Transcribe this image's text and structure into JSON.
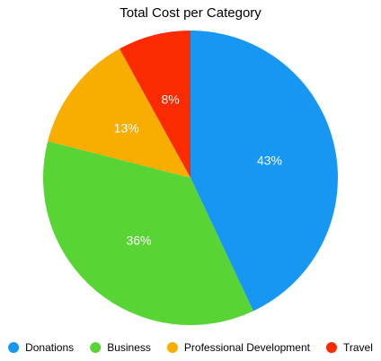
{
  "chart_data": {
    "type": "pie",
    "title": "Total Cost per Category",
    "categories": [
      "Donations",
      "Business",
      "Professional Development",
      "Travel"
    ],
    "values": [
      43,
      36,
      13,
      8
    ],
    "labels": [
      "43%",
      "36%",
      "13%",
      "8%"
    ],
    "colors": [
      "#1797f4",
      "#58d534",
      "#f7ae00",
      "#fc2a00"
    ],
    "legend_position": "bottom",
    "start_angle_deg": 0,
    "direction": "clockwise"
  }
}
